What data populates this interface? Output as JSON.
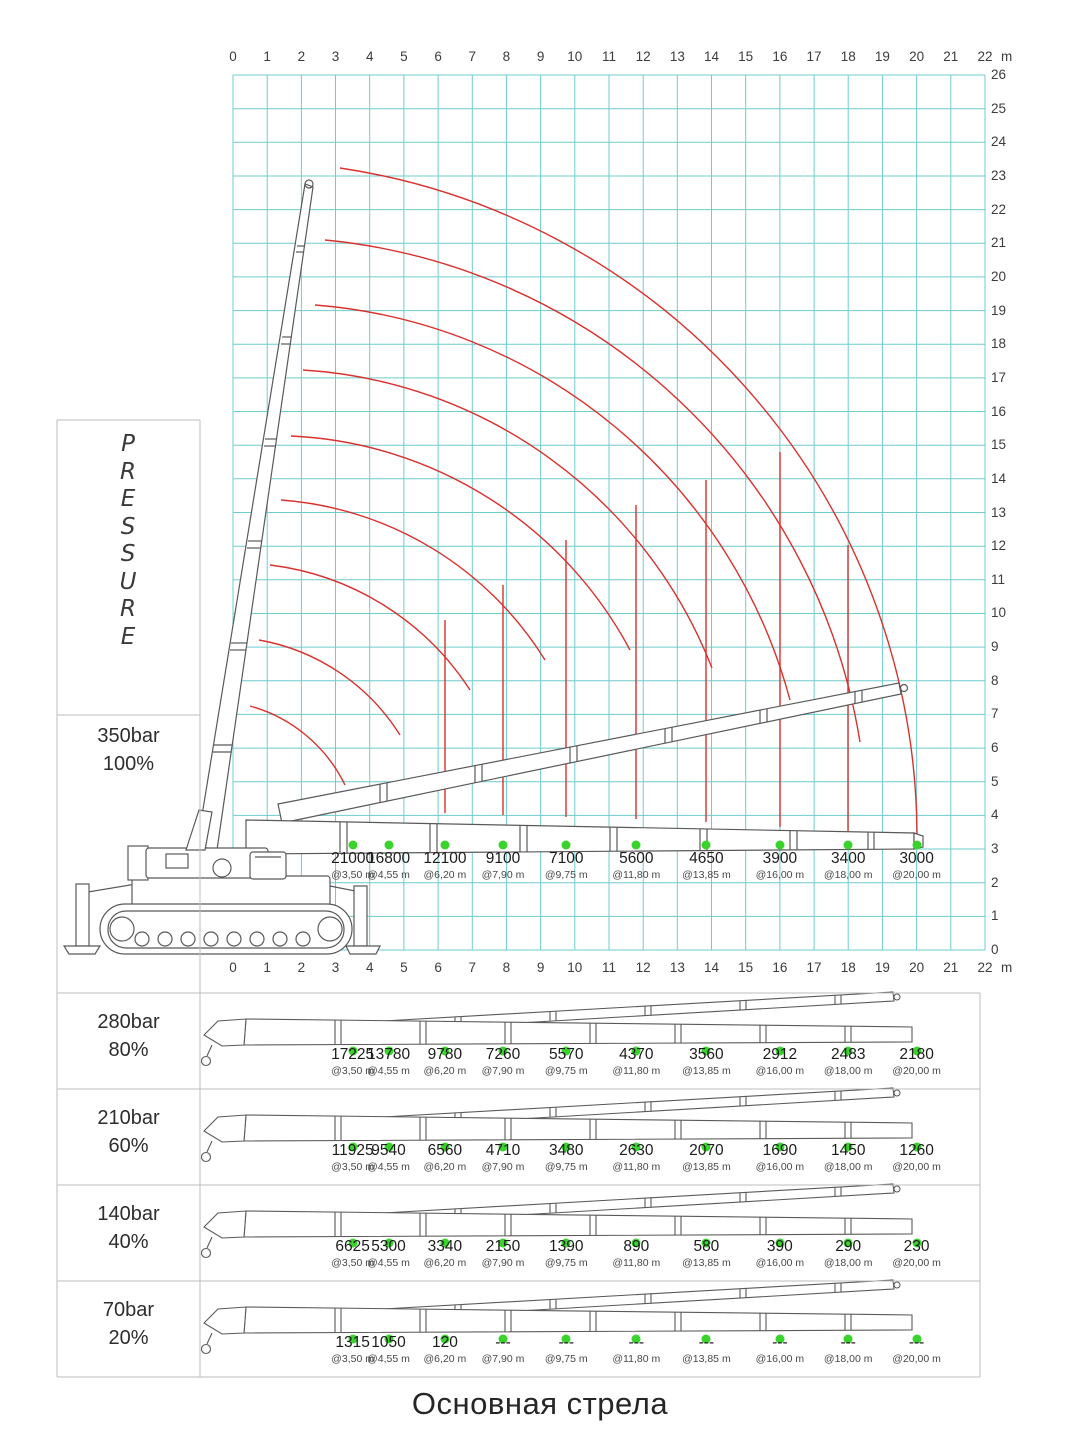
{
  "title": "Основная стрела",
  "pressure_panel": {
    "letters": [
      "P",
      "R",
      "E",
      "S",
      "S",
      "U",
      "R",
      "E"
    ]
  },
  "axes": {
    "unit": "m",
    "x_ticks": [
      "0",
      "1",
      "2",
      "3",
      "4",
      "5",
      "6",
      "7",
      "8",
      "9",
      "10",
      "11",
      "12",
      "13",
      "14",
      "15",
      "16",
      "17",
      "18",
      "19",
      "20",
      "21",
      "22"
    ],
    "y_ticks": [
      "26",
      "25",
      "24",
      "23",
      "22",
      "21",
      "20",
      "19",
      "18",
      "17",
      "16",
      "15",
      "14",
      "13",
      "12",
      "11",
      "10",
      "9",
      "8",
      "7",
      "6",
      "5",
      "4",
      "3",
      "2",
      "1",
      "0"
    ]
  },
  "colors": {
    "grid": "#6fcccc",
    "envelope": "#d9312e",
    "dot": "#39d32c"
  },
  "rows": [
    {
      "pressure": "350bar",
      "percent": "100%",
      "values": [
        {
          "load": "21000",
          "radius": "@3,50 m",
          "r": 3.5
        },
        {
          "load": "16800",
          "radius": "@4,55 m",
          "r": 4.55
        },
        {
          "load": "12100",
          "radius": "@6,20 m",
          "r": 6.2
        },
        {
          "load": "9100",
          "radius": "@7,90 m",
          "r": 7.9
        },
        {
          "load": "7100",
          "radius": "@9,75 m",
          "r": 9.75
        },
        {
          "load": "5600",
          "radius": "@11,80 m",
          "r": 11.8
        },
        {
          "load": "4650",
          "radius": "@13,85 m",
          "r": 13.85
        },
        {
          "load": "3900",
          "radius": "@16,00 m",
          "r": 16
        },
        {
          "load": "3400",
          "radius": "@18,00 m",
          "r": 18
        },
        {
          "load": "3000",
          "radius": "@20,00 m",
          "r": 20
        }
      ]
    },
    {
      "pressure": "280bar",
      "percent": "80%",
      "values": [
        {
          "load": "17225",
          "radius": "@3,50 m",
          "r": 3.5
        },
        {
          "load": "13780",
          "radius": "@4,55 m",
          "r": 4.55
        },
        {
          "load": "9780",
          "radius": "@6,20 m",
          "r": 6.2
        },
        {
          "load": "7260",
          "radius": "@7,90 m",
          "r": 7.9
        },
        {
          "load": "5570",
          "radius": "@9,75 m",
          "r": 9.75
        },
        {
          "load": "4370",
          "radius": "@11,80 m",
          "r": 11.8
        },
        {
          "load": "3560",
          "radius": "@13,85 m",
          "r": 13.85
        },
        {
          "load": "2912",
          "radius": "@16,00 m",
          "r": 16
        },
        {
          "load": "2483",
          "radius": "@18,00 m",
          "r": 18
        },
        {
          "load": "2180",
          "radius": "@20,00 m",
          "r": 20
        }
      ]
    },
    {
      "pressure": "210bar",
      "percent": "60%",
      "values": [
        {
          "load": "11925",
          "radius": "@3,50 m",
          "r": 3.5
        },
        {
          "load": "9540",
          "radius": "@4,55 m",
          "r": 4.55
        },
        {
          "load": "6560",
          "radius": "@6,20 m",
          "r": 6.2
        },
        {
          "load": "4710",
          "radius": "@7,90 m",
          "r": 7.9
        },
        {
          "load": "3480",
          "radius": "@9,75 m",
          "r": 9.75
        },
        {
          "load": "2630",
          "radius": "@11,80 m",
          "r": 11.8
        },
        {
          "load": "2070",
          "radius": "@13,85 m",
          "r": 13.85
        },
        {
          "load": "1690",
          "radius": "@16,00 m",
          "r": 16
        },
        {
          "load": "1450",
          "radius": "@18,00 m",
          "r": 18
        },
        {
          "load": "1260",
          "radius": "@20,00 m",
          "r": 20
        }
      ]
    },
    {
      "pressure": "140bar",
      "percent": "40%",
      "values": [
        {
          "load": "6625",
          "radius": "@3,50 m",
          "r": 3.5
        },
        {
          "load": "5300",
          "radius": "@4,55 m",
          "r": 4.55
        },
        {
          "load": "3340",
          "radius": "@6,20 m",
          "r": 6.2
        },
        {
          "load": "2150",
          "radius": "@7,90 m",
          "r": 7.9
        },
        {
          "load": "1390",
          "radius": "@9,75 m",
          "r": 9.75
        },
        {
          "load": "890",
          "radius": "@11,80 m",
          "r": 11.8
        },
        {
          "load": "580",
          "radius": "@13,85 m",
          "r": 13.85
        },
        {
          "load": "390",
          "radius": "@16,00 m",
          "r": 16
        },
        {
          "load": "290",
          "radius": "@18,00 m",
          "r": 18
        },
        {
          "load": "230",
          "radius": "@20,00 m",
          "r": 20
        }
      ]
    },
    {
      "pressure": "70bar",
      "percent": "20%",
      "values": [
        {
          "load": "1315",
          "radius": "@3,50 m",
          "r": 3.5
        },
        {
          "load": "1050",
          "radius": "@4,55 m",
          "r": 4.55
        },
        {
          "load": "120",
          "radius": "@6,20 m",
          "r": 6.2
        },
        {
          "load": "---",
          "radius": "@7,90 m",
          "r": 7.9
        },
        {
          "load": "---",
          "radius": "@9,75 m",
          "r": 9.75
        },
        {
          "load": "---",
          "radius": "@11,80 m",
          "r": 11.8
        },
        {
          "load": "---",
          "radius": "@13,85 m",
          "r": 13.85
        },
        {
          "load": "---",
          "radius": "@16,00 m",
          "r": 16
        },
        {
          "load": "---",
          "radius": "@18,00 m",
          "r": 18
        },
        {
          "load": "---",
          "radius": "@20,00 m",
          "r": 20
        }
      ]
    }
  ],
  "chart_data": {
    "type": "line",
    "title": "Основная стрела",
    "x_unit": "m",
    "x": [
      3.5,
      4.55,
      6.2,
      7.9,
      9.75,
      11.8,
      13.85,
      16,
      18,
      20
    ],
    "series": [
      {
        "name": "350bar 100%",
        "values": [
          21000,
          16800,
          12100,
          9100,
          7100,
          5600,
          4650,
          3900,
          3400,
          3000
        ]
      },
      {
        "name": "280bar 80%",
        "values": [
          17225,
          13780,
          9780,
          7260,
          5570,
          4370,
          3560,
          2912,
          2483,
          2180
        ]
      },
      {
        "name": "210bar 60%",
        "values": [
          11925,
          9540,
          6560,
          4710,
          3480,
          2630,
          2070,
          1690,
          1450,
          1260
        ]
      },
      {
        "name": "140bar 40%",
        "values": [
          6625,
          5300,
          3340,
          2150,
          1390,
          890,
          580,
          390,
          290,
          230
        ]
      },
      {
        "name": "70bar 20%",
        "values": [
          1315,
          1050,
          120,
          null,
          null,
          null,
          null,
          null,
          null,
          null
        ]
      }
    ],
    "x_axis_range": [
      0,
      22
    ],
    "y_axis_range": [
      0,
      26
    ],
    "grid": true,
    "legend_position": "left"
  }
}
